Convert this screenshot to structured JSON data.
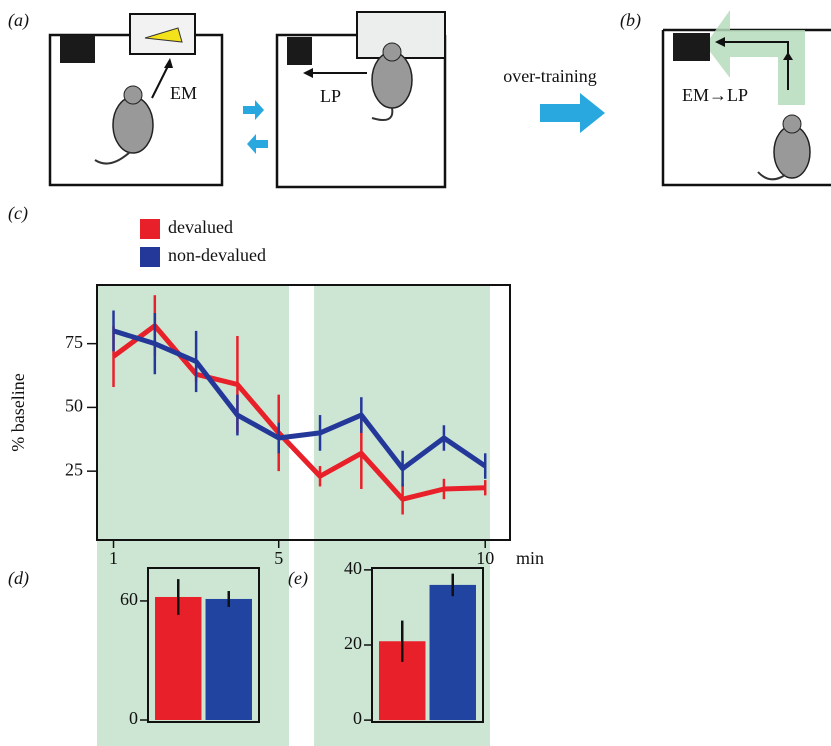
{
  "diagram": {
    "panel_a": "(a)",
    "panel_b": "(b)",
    "em": "EM",
    "lp": "LP",
    "over_training": "over-training",
    "em_lp": "EM→LP"
  },
  "chart_data": [
    {
      "type": "line",
      "panel_label": "(c)",
      "y_label": "% baseline",
      "x_label": "min",
      "x": [
        1,
        2,
        3,
        4,
        5,
        6,
        7,
        8,
        9,
        10
      ],
      "xlim": [
        0.6,
        10.6
      ],
      "xticks": [
        1,
        5,
        10
      ],
      "ylim": [
        -2,
        98
      ],
      "yticks": [
        25,
        50,
        75
      ],
      "series": [
        {
          "name": "devalued",
          "color": "#e8202a",
          "values": [
            70,
            82,
            63,
            59,
            40,
            23,
            32,
            14,
            18,
            18.5
          ],
          "errors": [
            12,
            12,
            3,
            19,
            15,
            4,
            14,
            6,
            4,
            3
          ]
        },
        {
          "name": "non-devalued",
          "color": "#24389a",
          "values": [
            80,
            75,
            68,
            47,
            38,
            40,
            47,
            26,
            38,
            27
          ],
          "errors": [
            8,
            12,
            12,
            8,
            6,
            7,
            7,
            7,
            5,
            5
          ]
        }
      ]
    },
    {
      "type": "bar",
      "panel_label": "(d)",
      "categories": [
        null,
        null
      ],
      "values": [
        62,
        61
      ],
      "errors": [
        9,
        4
      ],
      "colors": [
        "#e8202a",
        "#2044a0"
      ],
      "ylim": [
        -1,
        76.6
      ],
      "yticks": [
        0,
        60
      ]
    },
    {
      "type": "bar",
      "panel_label": "(e)",
      "categories": [
        null,
        null
      ],
      "values": [
        21,
        36
      ],
      "errors": [
        5.5,
        3
      ],
      "colors": [
        "#e8202a",
        "#2044a0"
      ],
      "ylim": [
        -0.5,
        40.5
      ],
      "yticks": [
        0,
        20,
        40
      ]
    }
  ]
}
